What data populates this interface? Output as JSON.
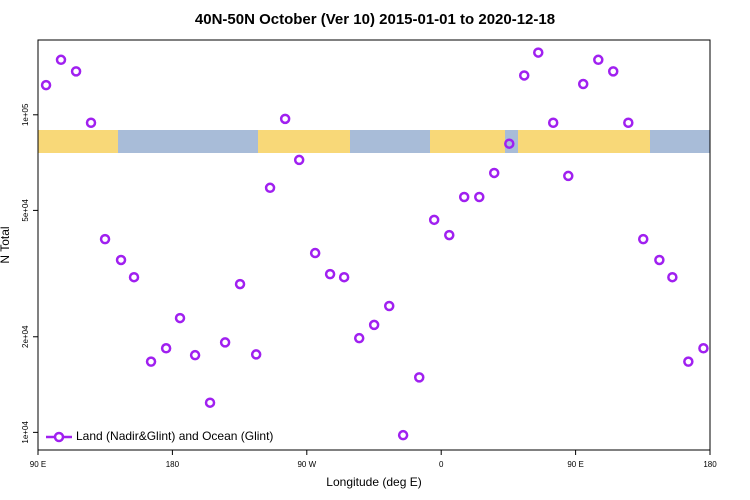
{
  "chart_data": {
    "type": "scatter",
    "title": "40N-50N October (Ver 10)   2015-01-01 to 2020-12-18",
    "x_label": "Longitude (deg E)",
    "y_label": "N Total",
    "log_y": true,
    "legend": "lower left",
    "xlim": [
      -270,
      180
    ],
    "xticks": [
      {
        "value": -270,
        "label": "90 E"
      },
      {
        "value": -180,
        "label": "180"
      },
      {
        "value": -90,
        "label": "90 W"
      },
      0,
      {
        "value": 90,
        "label": "90 E"
      },
      {
        "value": 180,
        "label": "180"
      }
    ],
    "ylim": [
      8800,
      172000
    ],
    "yticks": [
      {
        "value": 10000,
        "label": "1e+04"
      },
      {
        "value": 20000,
        "label": "2e+04"
      },
      {
        "value": 50000,
        "label": "5e+04"
      },
      {
        "value": 100000,
        "label": "1e+05"
      }
    ],
    "series": [
      {
        "name": "Land (Nadir&Glint) and Ocean (Glint)",
        "color": "#a020f0",
        "x": [
          -264.6,
          -254.6,
          -244.5,
          -234.5,
          -225.1,
          -214.4,
          -205.7,
          -194.3,
          -184.2,
          -174.9,
          -164.8,
          -154.8,
          -144.7,
          -134.7,
          -123.9,
          -114.6,
          -104.5,
          -95.1,
          -84.4,
          -74.4,
          -65.0,
          -54.9,
          -44.9,
          -34.8,
          -25.5,
          -14.7,
          -4.7,
          5.4,
          15.4,
          25.5,
          35.5,
          45.6,
          55.6,
          65.0,
          75.0,
          85.1,
          95.1,
          105.2,
          115.2,
          125.3,
          135.3,
          146.1,
          154.8,
          165.5,
          175.6
        ],
        "values": [
          124000,
          149000,
          137000,
          94400,
          40600,
          34900,
          30800,
          16700,
          18400,
          22900,
          17500,
          12400,
          19200,
          29300,
          17600,
          58900,
          97100,
          72100,
          36700,
          31500,
          30800,
          19800,
          21800,
          25000,
          9800,
          14900,
          46700,
          41800,
          55100,
          55100,
          65600,
          81100,
          133000,
          157000,
          94400,
          64200,
          125000,
          149000,
          137000,
          94400,
          40600,
          34900,
          30800,
          16700,
          18400
        ]
      }
    ]
  }
}
